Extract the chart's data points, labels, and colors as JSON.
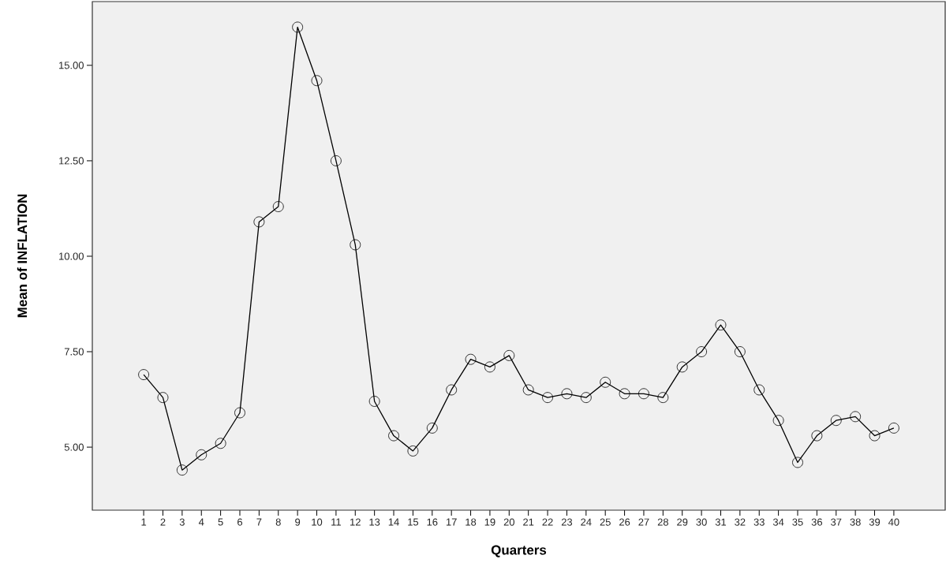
{
  "chart_data": {
    "type": "line",
    "xlabel": "Quarters",
    "ylabel": "Mean of INFLATION",
    "categories": [
      "1",
      "2",
      "3",
      "4",
      "5",
      "6",
      "7",
      "8",
      "9",
      "10",
      "11",
      "12",
      "13",
      "14",
      "15",
      "16",
      "17",
      "18",
      "19",
      "20",
      "21",
      "22",
      "23",
      "24",
      "25",
      "26",
      "27",
      "28",
      "29",
      "30",
      "31",
      "32",
      "33",
      "34",
      "35",
      "36",
      "37",
      "38",
      "39",
      "40"
    ],
    "values": [
      6.9,
      6.3,
      4.4,
      4.8,
      5.1,
      5.9,
      10.9,
      11.3,
      16.0,
      14.6,
      12.5,
      10.3,
      6.2,
      5.3,
      4.9,
      5.5,
      6.5,
      7.3,
      7.1,
      7.4,
      6.5,
      6.3,
      6.4,
      6.3,
      6.7,
      6.4,
      6.4,
      6.3,
      7.1,
      7.5,
      8.2,
      7.5,
      6.5,
      5.7,
      4.6,
      5.3,
      5.7,
      5.8,
      5.3,
      5.5
    ],
    "color": "#000000",
    "marker": "circle",
    "line_style": "solid",
    "ylim": [
      3.35,
      16.67
    ],
    "yticks": [
      {
        "value": 5,
        "label": "5.00"
      },
      {
        "value": 7.5,
        "label": "7.50"
      },
      {
        "value": 10,
        "label": "10.00"
      },
      {
        "value": 12.5,
        "label": "12.50"
      },
      {
        "value": 15,
        "label": "15.00"
      }
    ]
  }
}
